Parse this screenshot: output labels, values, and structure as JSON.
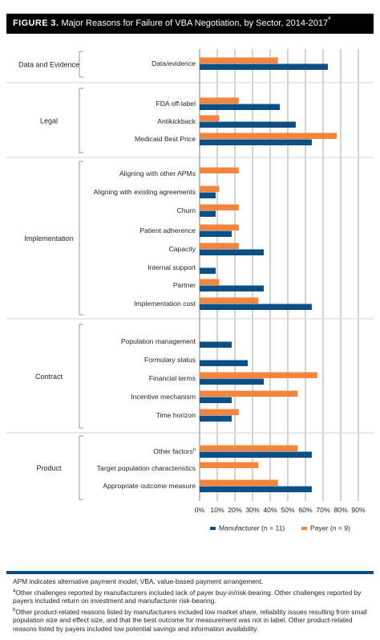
{
  "figure": {
    "label": "FIGURE 3.",
    "title": "Major Reasons for Failure of VBA Negotiation, by Sector, 2014-2017",
    "title_sup": "a"
  },
  "colors": {
    "manufacturer": "#0b4f84",
    "payer": "#f5843c",
    "gridline": "#c8c8c8",
    "bracket": "#a7a9ac"
  },
  "chart_data": {
    "type": "bar",
    "orientation": "horizontal",
    "xlim": [
      0,
      90
    ],
    "x_ticks": [
      "0%",
      "10%",
      "20%",
      "30%",
      "40%",
      "50%",
      "60%",
      "70%",
      "80%",
      "90%"
    ],
    "grid": true,
    "legend_position": "bottom",
    "series": [
      {
        "name": "Manufacturer (n = 11)",
        "color": "#0b4f84"
      },
      {
        "name": "Payer (n = 9)",
        "color": "#f5843c"
      }
    ],
    "groups": [
      {
        "name": "Data and Evidence",
        "items": [
          {
            "label": "Data/evidence",
            "sup": "",
            "manufacturer": 72.7,
            "payer": 44.4
          }
        ]
      },
      {
        "name": "Legal",
        "items": [
          {
            "label": "FDA off-label",
            "sup": "",
            "manufacturer": 45.5,
            "payer": 22.2
          },
          {
            "label": "Antikickback",
            "sup": "",
            "manufacturer": 54.5,
            "payer": 11.1
          },
          {
            "label": "Medicaid Best Price",
            "sup": "",
            "manufacturer": 63.6,
            "payer": 77.8
          }
        ]
      },
      {
        "name": "Implementation",
        "items": [
          {
            "label": "Aligning with other APMs",
            "sup": "",
            "manufacturer": 0,
            "payer": 22.2
          },
          {
            "label": "Aligning with existing agreements",
            "sup": "",
            "manufacturer": 9.1,
            "payer": 11.1
          },
          {
            "label": "Churn",
            "sup": "",
            "manufacturer": 9.1,
            "payer": 22.2
          },
          {
            "label": "Patient adherence",
            "sup": "",
            "manufacturer": 18.2,
            "payer": 22.2
          },
          {
            "label": "Capacity",
            "sup": "",
            "manufacturer": 36.4,
            "payer": 22.2
          },
          {
            "label": "Internal support",
            "sup": "",
            "manufacturer": 9.1,
            "payer": 0
          },
          {
            "label": "Partner",
            "sup": "",
            "manufacturer": 36.4,
            "payer": 11.1
          },
          {
            "label": "Implementation cost",
            "sup": "",
            "manufacturer": 63.6,
            "payer": 33.3
          }
        ]
      },
      {
        "name": "Contract",
        "items": [
          {
            "label": "Population management",
            "sup": "",
            "manufacturer": 18.2,
            "payer": 0
          },
          {
            "label": "Formulary status",
            "sup": "",
            "manufacturer": 27.3,
            "payer": 0
          },
          {
            "label": "Financial terms",
            "sup": "",
            "manufacturer": 36.4,
            "payer": 66.7
          },
          {
            "label": "Incentive mechanism",
            "sup": "",
            "manufacturer": 18.2,
            "payer": 55.6
          },
          {
            "label": "Time horizon",
            "sup": "",
            "manufacturer": 18.2,
            "payer": 22.2
          }
        ]
      },
      {
        "name": "Product",
        "items": [
          {
            "label": "Other factors",
            "sup": "b",
            "manufacturer": 63.6,
            "payer": 55.6
          },
          {
            "label": "Target population characteristics",
            "sup": "",
            "manufacturer": 0,
            "payer": 33.3
          },
          {
            "label": "Appropriate outcome measure",
            "sup": "",
            "manufacturer": 63.6,
            "payer": 44.4
          }
        ]
      }
    ]
  },
  "notes": {
    "abbrev": "APM indicates alternative payment model; VBA, value-based payment arrangement.",
    "a_sup": "a",
    "a_text": "Other challenges reported by manufacturers included lack of payer buy-in/risk-bearing. Other challenges reported by payers included return on investment and manufacturer risk-bearing.",
    "b_sup": "b",
    "b_text": "Other product-related reasons listed by manufacturers included low market share, reliability issues resulting from small population size and effect size, and that the best outcome for measurement was not in label. Other product-related reasons listed by payers included low potential savings and information availability."
  }
}
